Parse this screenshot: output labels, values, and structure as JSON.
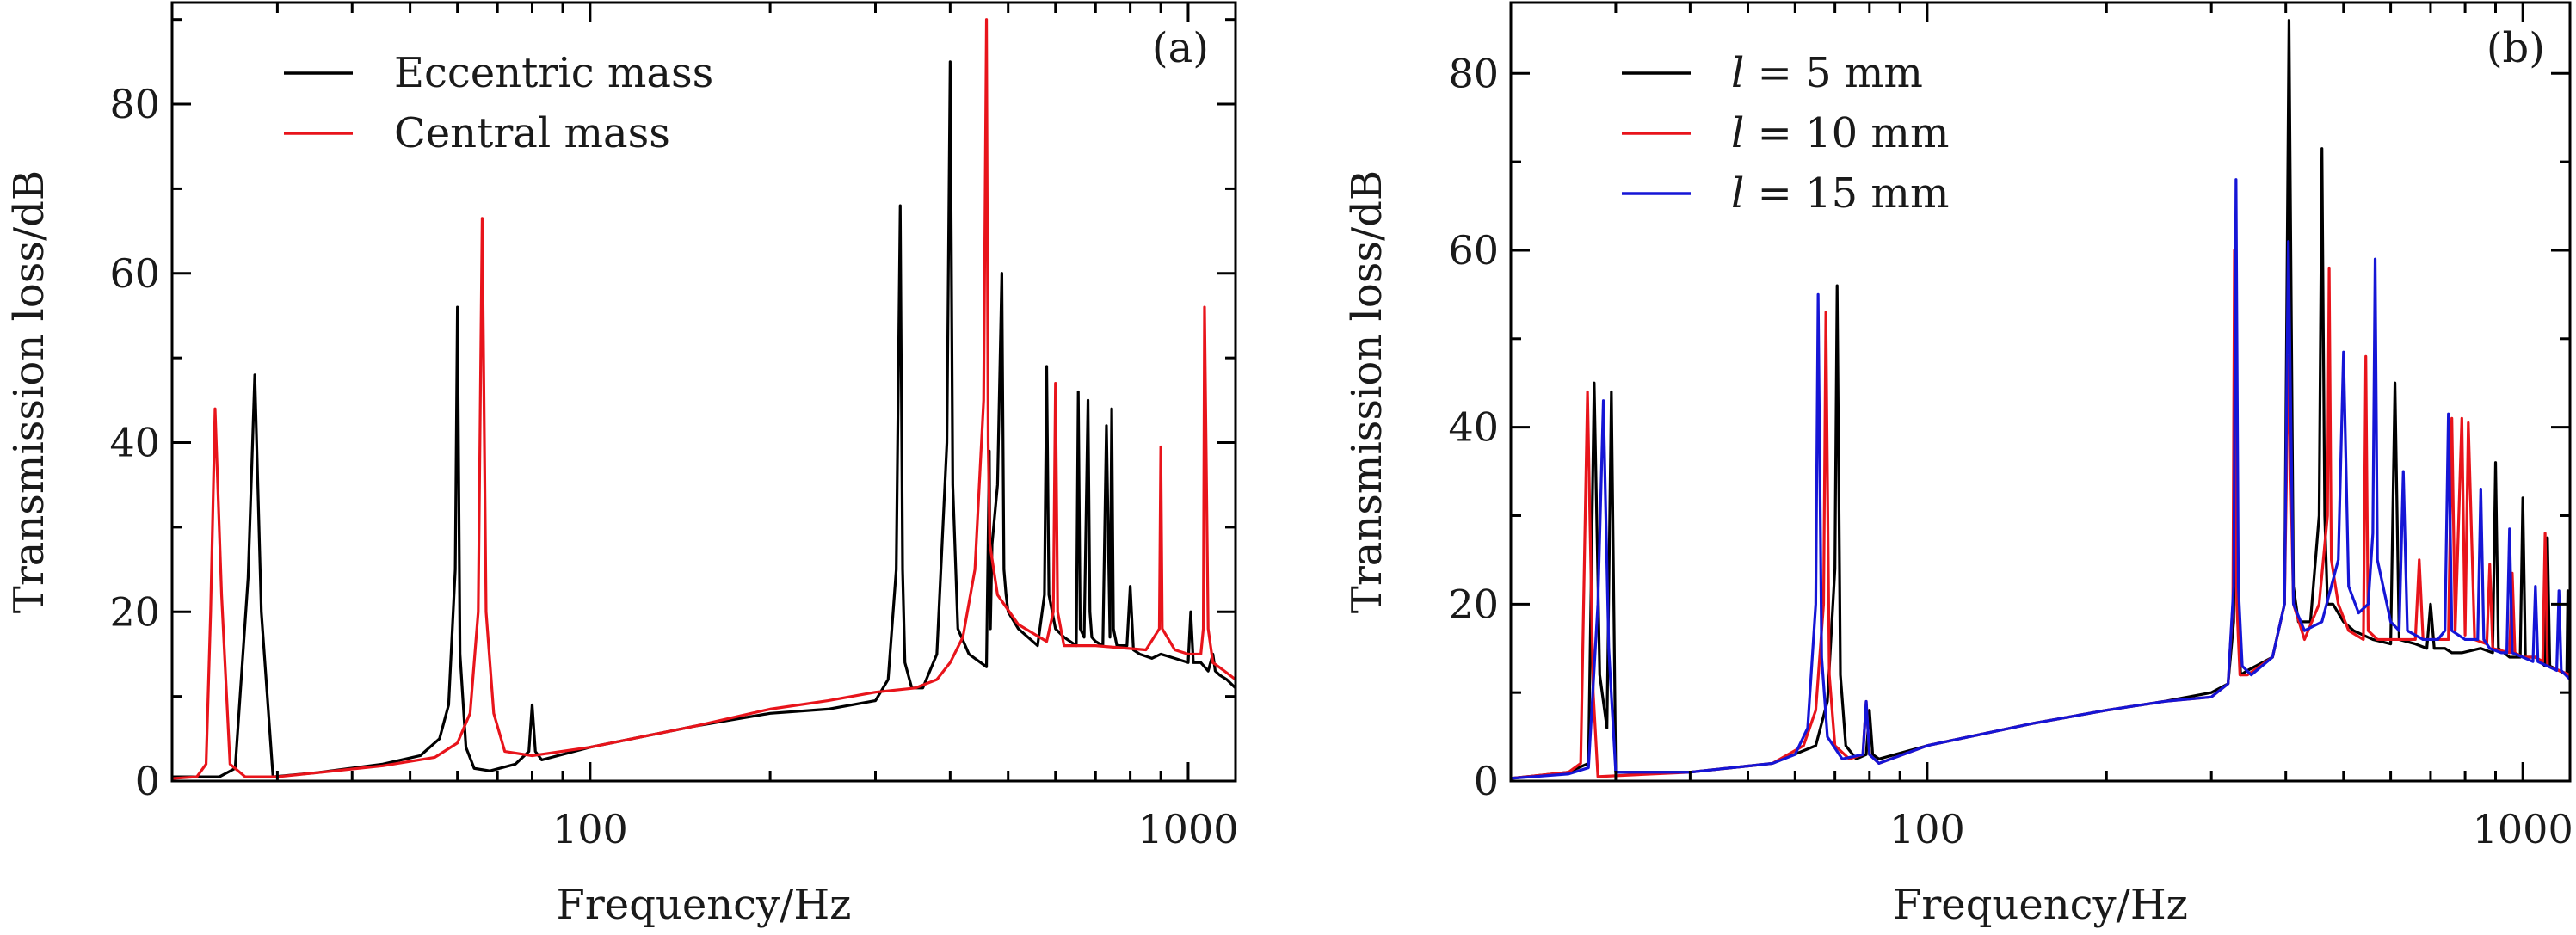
{
  "chart_data": [
    {
      "type": "line",
      "panel_label": "(a)",
      "xlabel": "Frequency/Hz",
      "ylabel": "Transmission loss/dB",
      "xscale": "log",
      "xlim": [
        20,
        1200
      ],
      "ylim": [
        0,
        92
      ],
      "xticks": [
        100,
        1000
      ],
      "xtick_labels": [
        "100",
        "1000"
      ],
      "yticks": [
        0,
        20,
        40,
        60,
        80
      ],
      "ytick_labels": [
        "0",
        "20",
        "40",
        "60",
        "80"
      ],
      "legend_position": "top-left",
      "series": [
        {
          "name": "Eccentric mass",
          "color": "#000000",
          "x": [
            20,
            24,
            25.5,
            26.8,
            27.5,
            28.2,
            29.5,
            35,
            45,
            52,
            56,
            58,
            59.5,
            60,
            60.6,
            62,
            64,
            68,
            75,
            79,
            80,
            81,
            83,
            100,
            150,
            200,
            250,
            300,
            315,
            325,
            330,
            333,
            336,
            345,
            360,
            380,
            395,
            400,
            404,
            412,
            430,
            460,
            465,
            467,
            470,
            480,
            488,
            492,
            496,
            500,
            520,
            560,
            575,
            580,
            585,
            600,
            620,
            650,
            655,
            660,
            670,
            680,
            685,
            690,
            700,
            720,
            730,
            740,
            745,
            750,
            760,
            790,
            800,
            810,
            830,
            870,
            900,
            950,
            1000,
            1010,
            1020,
            1050,
            1080,
            1100,
            1110,
            1130,
            1160,
            1200
          ],
          "y": [
            0.5,
            0.5,
            1.5,
            24,
            48,
            20,
            0.5,
            1.0,
            2.0,
            3.0,
            5.0,
            9.0,
            25,
            56,
            15,
            4.0,
            1.5,
            1.2,
            2.0,
            3.5,
            9.0,
            3.5,
            2.5,
            4.0,
            6.5,
            8.0,
            8.5,
            9.5,
            12,
            25,
            68,
            25,
            14,
            11,
            11,
            15,
            40,
            85,
            35,
            18,
            15,
            13.5,
            39,
            18,
            28,
            35,
            60,
            25,
            22,
            20,
            18,
            16,
            22,
            49,
            22,
            18,
            17,
            16,
            46,
            18,
            17,
            45,
            20,
            17,
            16.5,
            16,
            42,
            17,
            44,
            18,
            16,
            16,
            23,
            15.5,
            15,
            14.5,
            15,
            14.5,
            14,
            20,
            14,
            14,
            13,
            15,
            13,
            12.5,
            12,
            11
          ]
        },
        {
          "name": "Central mass",
          "color": "#e8141b",
          "x": [
            20,
            22,
            22.8,
            23.2,
            23.6,
            24.2,
            25,
            26.5,
            30,
            45,
            55,
            60,
            63,
            65,
            66,
            67,
            69,
            72,
            80,
            100,
            150,
            200,
            250,
            300,
            350,
            380,
            400,
            420,
            440,
            455,
            460,
            463,
            466,
            480,
            520,
            580,
            595,
            600,
            605,
            620,
            700,
            850,
            895,
            900,
            905,
            950,
            1000,
            1050,
            1060,
            1065,
            1080,
            1100,
            1150,
            1200
          ],
          "y": [
            0.3,
            0.5,
            2.0,
            20,
            44,
            22,
            2.0,
            0.5,
            0.5,
            1.8,
            2.8,
            4.5,
            8.0,
            20,
            66.5,
            20,
            8.0,
            3.5,
            3.0,
            4.0,
            6.5,
            8.5,
            9.5,
            10.5,
            11,
            12,
            14,
            17,
            25,
            45,
            90,
            40,
            28,
            22,
            18.5,
            16.5,
            20,
            47,
            20,
            16,
            16,
            15.5,
            18,
            39.5,
            18,
            15.5,
            15,
            15,
            18,
            56,
            18,
            14,
            13,
            12
          ]
        }
      ]
    },
    {
      "type": "line",
      "panel_label": "(b)",
      "xlabel": "Frequency/Hz",
      "ylabel": "Transmission loss/dB",
      "xscale": "log",
      "xlim": [
        20,
        1200
      ],
      "ylim": [
        0,
        88
      ],
      "xticks": [
        100,
        1000
      ],
      "xtick_labels": [
        "100",
        "1000"
      ],
      "yticks": [
        0,
        20,
        40,
        60,
        80
      ],
      "ytick_labels": [
        "0",
        "20",
        "40",
        "60",
        "80"
      ],
      "legend_position": "top-left",
      "series": [
        {
          "name": "l = 5 mm",
          "name_var": "l",
          "name_rest": " = 5 mm",
          "color": "#000000",
          "x": [
            20,
            25,
            27.0,
            27.6,
            28.2,
            29,
            29.5,
            30,
            40,
            55,
            65,
            68,
            70,
            70.6,
            71.5,
            73,
            76,
            79,
            80,
            81,
            83,
            100,
            150,
            200,
            250,
            300,
            320,
            327,
            330,
            333,
            336,
            345,
            380,
            398,
            405,
            412,
            420,
            440,
            455,
            460,
            465,
            470,
            480,
            500,
            520,
            560,
            600,
            610,
            620,
            660,
            690,
            700,
            710,
            740,
            760,
            790,
            850,
            890,
            900,
            910,
            950,
            990,
            1000,
            1010,
            1050,
            1090,
            1100,
            1110,
            1150,
            1185,
            1190,
            1195,
            1200
          ],
          "y": [
            0.3,
            1.0,
            2.0,
            45,
            12,
            6,
            44,
            1.0,
            1.0,
            2.0,
            4.0,
            9.0,
            24,
            56,
            12,
            4.0,
            2.5,
            3.0,
            8.0,
            3.0,
            2.5,
            4.0,
            6.5,
            8.0,
            9.0,
            10,
            11,
            18,
            50,
            17,
            12,
            12.5,
            14,
            20,
            86,
            22,
            18,
            18,
            30,
            71.5,
            30,
            20,
            20,
            18,
            17,
            16,
            15.5,
            45,
            16,
            15.5,
            15,
            20,
            15,
            15,
            14.5,
            14.5,
            15,
            14.5,
            36,
            15,
            14,
            14,
            32,
            14,
            14,
            13,
            27.5,
            13,
            12.5,
            12,
            21.5,
            12,
            11.5
          ]
        },
        {
          "name": "l = 10 mm",
          "name_var": "l",
          "name_rest": " = 10 mm",
          "color": "#e8141b",
          "x": [
            20,
            25,
            26.2,
            26.9,
            27.5,
            28,
            40,
            55,
            62,
            65,
            67,
            67.6,
            68.5,
            70,
            74,
            78,
            79,
            80,
            83,
            100,
            150,
            200,
            250,
            300,
            320,
            326,
            328,
            331,
            335,
            345,
            380,
            398,
            404,
            412,
            430,
            455,
            470,
            473,
            477,
            490,
            510,
            540,
            545,
            550,
            570,
            660,
            670,
            680,
            720,
            750,
            760,
            770,
            790,
            800,
            810,
            830,
            870,
            880,
            890,
            950,
            960,
            970,
            1000,
            1050,
            1080,
            1090,
            1100,
            1150,
            1200
          ],
          "y": [
            0.3,
            1.0,
            2.0,
            44,
            10,
            0.5,
            1.0,
            2.0,
            4.0,
            8.0,
            20,
            53,
            12,
            4.0,
            2.5,
            3.0,
            9.0,
            3.0,
            2.0,
            4.0,
            6.5,
            8.0,
            9.0,
            9.5,
            11,
            20,
            60,
            20,
            12,
            12,
            14,
            20,
            48,
            20,
            16,
            20,
            30,
            58,
            25,
            20,
            17,
            16,
            48,
            17,
            16,
            16,
            25,
            16,
            16,
            16,
            41,
            17,
            41,
            16.5,
            40.5,
            16,
            15.5,
            24.5,
            15,
            14.5,
            23.5,
            14.5,
            14,
            14,
            13.5,
            28,
            13,
            12.5,
            12
          ]
        },
        {
          "name": "l = 15 mm",
          "name_var": "l",
          "name_rest": " = 15 mm",
          "color": "#1515d6",
          "x": [
            20,
            25,
            27,
            28.0,
            28.6,
            29.2,
            30,
            40,
            55,
            60,
            63,
            65,
            65.6,
            66.5,
            68,
            72,
            78,
            79,
            80,
            83,
            100,
            150,
            200,
            250,
            300,
            320,
            327,
            330,
            333,
            338,
            350,
            380,
            398,
            404,
            412,
            430,
            460,
            490,
            500,
            510,
            530,
            550,
            560,
            565,
            570,
            600,
            620,
            630,
            640,
            680,
            720,
            740,
            750,
            760,
            800,
            840,
            850,
            860,
            880,
            920,
            940,
            950,
            960,
            1000,
            1040,
            1050,
            1060,
            1100,
            1140,
            1150,
            1160,
            1200
          ],
          "y": [
            0.3,
            0.8,
            1.5,
            20,
            43,
            15,
            1.0,
            1.0,
            2.0,
            3.0,
            6.0,
            20,
            55,
            14,
            5.0,
            2.5,
            3.0,
            9.0,
            3.0,
            2.0,
            4.0,
            6.5,
            8.0,
            9.0,
            9.5,
            11,
            22,
            68,
            22,
            13,
            12,
            14,
            20,
            61,
            20,
            17,
            18,
            25,
            48.5,
            22,
            19,
            20,
            28,
            59,
            25,
            18,
            17,
            35,
            17,
            16,
            16,
            17,
            41.5,
            17,
            16,
            16,
            33,
            16,
            15,
            14.5,
            14.5,
            28.5,
            14.5,
            14,
            13.5,
            22,
            13.5,
            13,
            12.5,
            21.5,
            12.5,
            11.5
          ]
        }
      ]
    }
  ]
}
